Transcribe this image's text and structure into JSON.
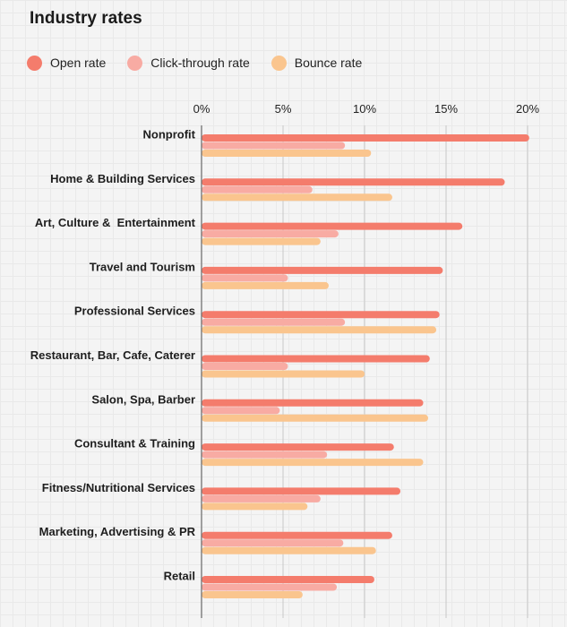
{
  "chart_data": {
    "type": "bar",
    "orientation": "horizontal",
    "title": "Industry rates",
    "categories": [
      "Nonprofit",
      "Home & Building Services",
      "Art, Culture &  Entertainment",
      "Travel and Tourism",
      "Professional Services",
      "Restaurant, Bar, Cafe, Caterer",
      "Salon, Spa, Barber",
      "Consultant & Training",
      "Fitness/Nutritional Services",
      "Marketing, Advertising & PR",
      "Retail"
    ],
    "series": [
      {
        "name": "Open rate",
        "color": "#f47c6c",
        "values": [
          20.1,
          18.6,
          16.0,
          14.8,
          14.6,
          14.0,
          13.6,
          11.8,
          12.2,
          11.7,
          10.6
        ]
      },
      {
        "name": "Click-through rate",
        "color": "#f8aba3",
        "values": [
          8.8,
          6.8,
          8.4,
          5.3,
          8.8,
          5.3,
          4.8,
          7.7,
          7.3,
          8.7,
          8.3
        ]
      },
      {
        "name": "Bounce rate",
        "color": "#fac58e",
        "values": [
          10.4,
          11.7,
          7.3,
          7.8,
          14.4,
          10.0,
          13.9,
          13.6,
          6.5,
          10.7,
          6.2
        ]
      }
    ],
    "x_ticks": [
      "0%",
      "5%",
      "10%",
      "15%",
      "20%"
    ],
    "xlim": [
      0,
      20
    ],
    "legend_position": "top-left",
    "grid": true
  }
}
